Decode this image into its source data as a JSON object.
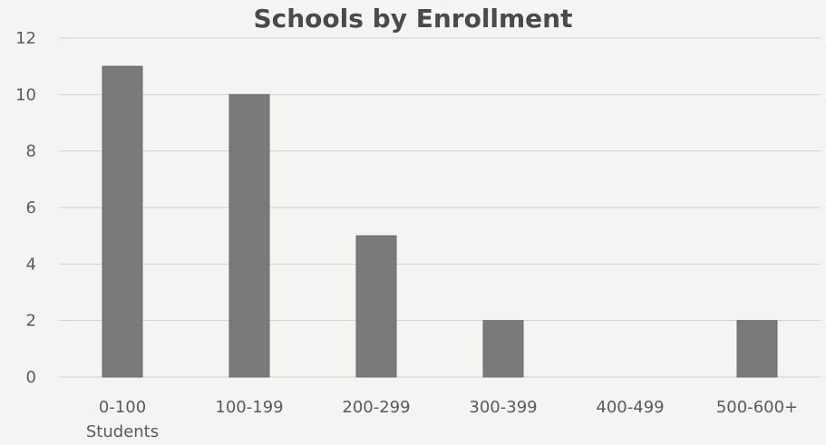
{
  "chart_data": {
    "type": "bar",
    "title": "Schools by Enrollment",
    "categories": [
      "0-100 Students",
      "100-199",
      "200-299",
      "300-399",
      "400-499",
      "500-600+"
    ],
    "category_lines": [
      [
        "0-100",
        "Students"
      ],
      [
        "100-199"
      ],
      [
        "200-299"
      ],
      [
        "300-399"
      ],
      [
        "400-499"
      ],
      [
        "500-600+"
      ]
    ],
    "values": [
      11,
      10,
      5,
      2,
      0,
      2
    ],
    "xlabel": "",
    "ylabel": "",
    "ylim": [
      0,
      12
    ],
    "yticks": [
      0,
      2,
      4,
      6,
      8,
      10,
      12
    ],
    "grid": true,
    "bar_color": "#7a7a7a"
  }
}
